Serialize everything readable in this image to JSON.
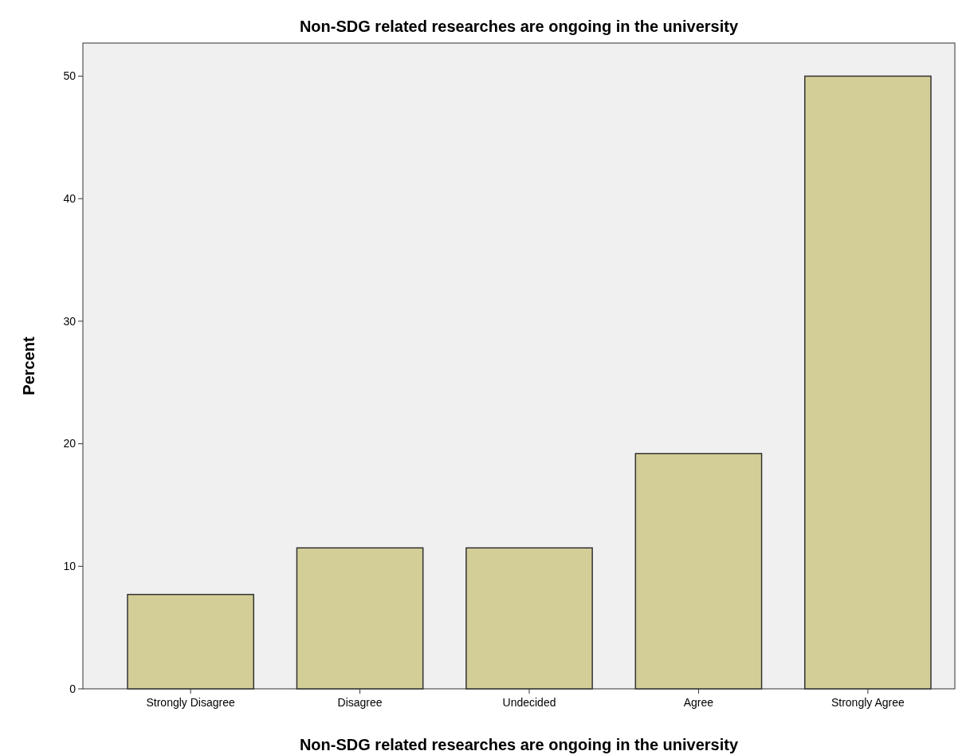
{
  "chart_data": {
    "type": "bar",
    "title": "Non-SDG related researches are ongoing in the university",
    "xlabel": "Non-SDG related researches are ongoing in the university",
    "ylabel": "Percent",
    "categories": [
      "Strongly Disagree",
      "Disagree",
      "Undecided",
      "Agree",
      "Strongly Agree"
    ],
    "values": [
      7.7,
      11.5,
      11.5,
      19.2,
      50.0
    ],
    "color": "#d3ce97",
    "ylim": [
      0,
      52.7
    ],
    "yticks": [
      0,
      10,
      20,
      30,
      40,
      50
    ]
  }
}
